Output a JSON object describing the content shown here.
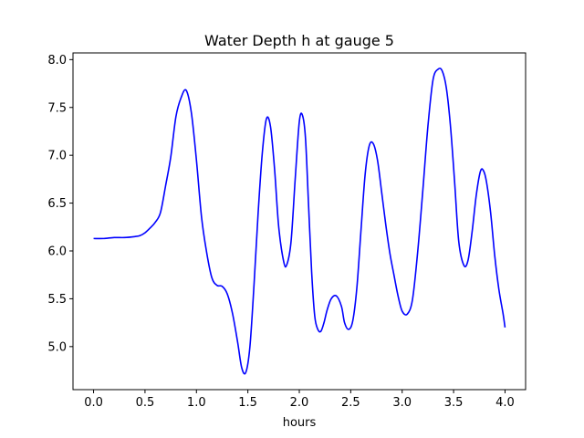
{
  "chart_data": {
    "type": "line",
    "title": "Water Depth h at gauge 5",
    "xlabel": "hours",
    "ylabel": "",
    "xlim": [
      -0.2,
      4.2
    ],
    "ylim": [
      4.55,
      8.07
    ],
    "xticks": [
      0.0,
      0.5,
      1.0,
      1.5,
      2.0,
      2.5,
      3.0,
      3.5,
      4.0
    ],
    "xtick_labels": [
      "0.0",
      "0.5",
      "1.0",
      "1.5",
      "2.0",
      "2.5",
      "3.0",
      "3.5",
      "4.0"
    ],
    "yticks": [
      5.0,
      5.5,
      6.0,
      6.5,
      7.0,
      7.5,
      8.0
    ],
    "ytick_labels": [
      "5.0",
      "5.5",
      "6.0",
      "6.5",
      "7.0",
      "7.5",
      "8.0"
    ],
    "grid": false,
    "series": [
      {
        "color": "#0000ff",
        "x": [
          0.0,
          0.1,
          0.2,
          0.3,
          0.4,
          0.45,
          0.5,
          0.55,
          0.6,
          0.65,
          0.7,
          0.75,
          0.8,
          0.85,
          0.9,
          0.95,
          1.0,
          1.05,
          1.1,
          1.15,
          1.2,
          1.25,
          1.3,
          1.35,
          1.4,
          1.44,
          1.48,
          1.52,
          1.56,
          1.6,
          1.64,
          1.68,
          1.72,
          1.76,
          1.8,
          1.85,
          1.88,
          1.92,
          1.96,
          2.0,
          2.03,
          2.06,
          2.09,
          2.12,
          2.15,
          2.18,
          2.21,
          2.24,
          2.27,
          2.31,
          2.36,
          2.41,
          2.44,
          2.48,
          2.52,
          2.56,
          2.6,
          2.64,
          2.68,
          2.72,
          2.76,
          2.8,
          2.84,
          2.88,
          2.92,
          2.96,
          3.0,
          3.05,
          3.1,
          3.15,
          3.2,
          3.25,
          3.3,
          3.35,
          3.39,
          3.43,
          3.47,
          3.51,
          3.55,
          3.6,
          3.64,
          3.68,
          3.72,
          3.76,
          3.79,
          3.82,
          3.86,
          3.9,
          3.94,
          3.98,
          4.0
        ],
        "y": [
          6.13,
          6.13,
          6.14,
          6.14,
          6.15,
          6.16,
          6.19,
          6.24,
          6.3,
          6.4,
          6.68,
          6.98,
          7.4,
          7.6,
          7.68,
          7.45,
          6.95,
          6.35,
          5.98,
          5.72,
          5.64,
          5.63,
          5.55,
          5.35,
          5.05,
          4.78,
          4.73,
          5.0,
          5.65,
          6.4,
          7.02,
          7.38,
          7.3,
          6.85,
          6.25,
          5.88,
          5.86,
          6.1,
          6.75,
          7.35,
          7.42,
          7.18,
          6.48,
          5.78,
          5.32,
          5.18,
          5.16,
          5.25,
          5.38,
          5.5,
          5.53,
          5.42,
          5.25,
          5.18,
          5.27,
          5.62,
          6.22,
          6.8,
          7.1,
          7.12,
          6.95,
          6.62,
          6.28,
          5.98,
          5.75,
          5.53,
          5.37,
          5.34,
          5.49,
          5.98,
          6.62,
          7.3,
          7.79,
          7.9,
          7.88,
          7.7,
          7.3,
          6.72,
          6.1,
          5.85,
          5.9,
          6.2,
          6.58,
          6.83,
          6.84,
          6.72,
          6.4,
          5.95,
          5.6,
          5.35,
          5.2
        ]
      }
    ]
  }
}
